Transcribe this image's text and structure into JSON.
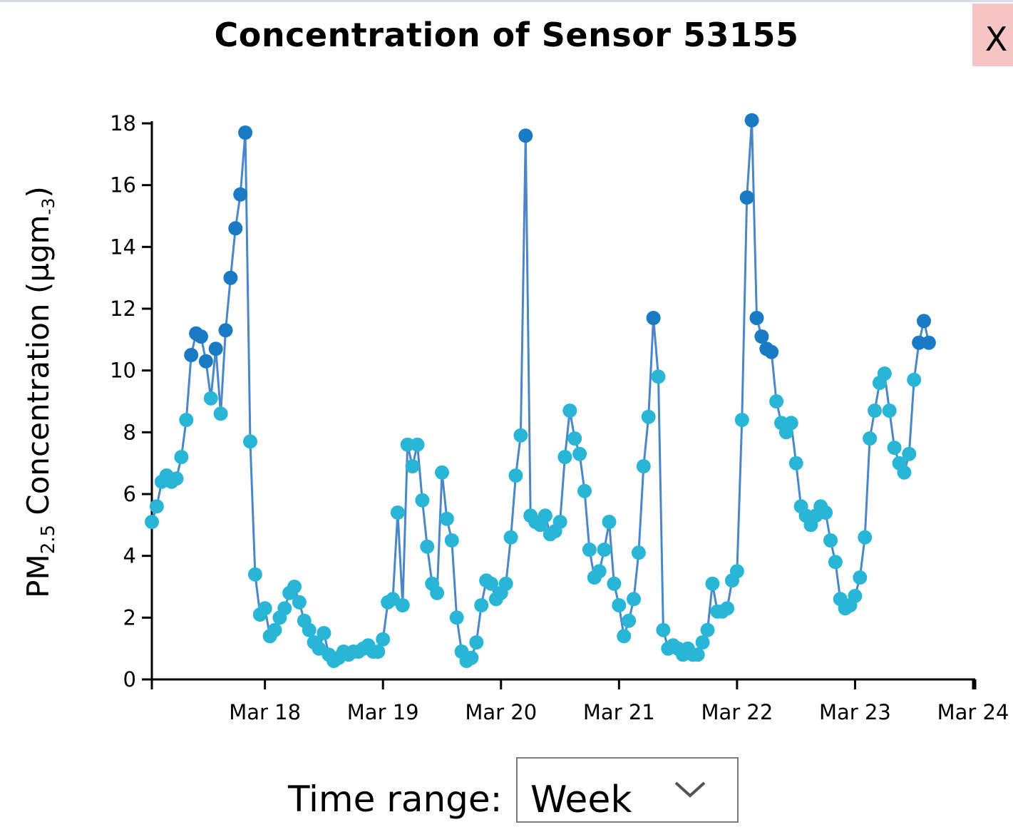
{
  "window": {
    "title": "Concentration of Sensor 53155",
    "close_label": "X"
  },
  "controls": {
    "time_range_label": "Time range:",
    "time_range_value": "Week"
  },
  "colors": {
    "line": "#4a86c8",
    "point_low": "#29b6d6",
    "point_high": "#1a7ac4",
    "axis": "#000000",
    "close_bg": "#f5c4c4"
  },
  "icons": {
    "close": "close-icon",
    "dropdown": "chevron-down-icon"
  },
  "chart_data": {
    "type": "line",
    "title": "Concentration of Sensor 53155",
    "xlabel": "",
    "ylabel": "PM2.5 Concentration (µgm-3)",
    "ylabel_parts": {
      "prefix": "PM",
      "sub": "2.5",
      "middle": " Concentration (µgm",
      "sup": "-3",
      "suffix": ")"
    },
    "ylim": [
      0,
      18
    ],
    "yticks": [
      0,
      2,
      4,
      6,
      8,
      10,
      12,
      14,
      16,
      18
    ],
    "xlim": [
      "2019-03-17T01:00",
      "2019-03-24T00:00"
    ],
    "xticks": [
      {
        "date": "2019-03-18T00:00",
        "label": "Mar 18"
      },
      {
        "date": "2019-03-19T00:00",
        "label": "Mar 19"
      },
      {
        "date": "2019-03-20T00:00",
        "label": "Mar 20"
      },
      {
        "date": "2019-03-21T00:00",
        "label": "Mar 21"
      },
      {
        "date": "2019-03-22T00:00",
        "label": "Mar 22"
      },
      {
        "date": "2019-03-23T00:00",
        "label": "Mar 23"
      },
      {
        "date": "2019-03-24T00:00",
        "label": "Mar 24"
      }
    ],
    "grid": false,
    "legend": "none",
    "series": [
      {
        "values": [
          [
            "2019-03-17T01:00",
            5.1
          ],
          [
            "2019-03-17T02:00",
            5.6
          ],
          [
            "2019-03-17T03:00",
            6.4
          ],
          [
            "2019-03-17T04:00",
            6.6
          ],
          [
            "2019-03-17T05:00",
            6.4
          ],
          [
            "2019-03-17T06:00",
            6.5
          ],
          [
            "2019-03-17T07:00",
            7.2
          ],
          [
            "2019-03-17T08:00",
            8.4
          ],
          [
            "2019-03-17T09:00",
            10.5
          ],
          [
            "2019-03-17T10:00",
            11.2
          ],
          [
            "2019-03-17T11:00",
            11.1
          ],
          [
            "2019-03-17T12:00",
            10.3
          ],
          [
            "2019-03-17T13:00",
            9.1
          ],
          [
            "2019-03-17T14:00",
            10.7
          ],
          [
            "2019-03-17T15:00",
            8.6
          ],
          [
            "2019-03-17T16:00",
            11.3
          ],
          [
            "2019-03-17T17:00",
            13.0
          ],
          [
            "2019-03-17T18:00",
            14.6
          ],
          [
            "2019-03-17T19:00",
            15.7
          ],
          [
            "2019-03-17T20:00",
            17.7
          ],
          [
            "2019-03-17T21:00",
            7.7
          ],
          [
            "2019-03-17T22:00",
            3.4
          ],
          [
            "2019-03-17T23:00",
            2.1
          ],
          [
            "2019-03-18T00:00",
            2.3
          ],
          [
            "2019-03-18T01:00",
            1.4
          ],
          [
            "2019-03-18T02:00",
            1.6
          ],
          [
            "2019-03-18T03:00",
            2.0
          ],
          [
            "2019-03-18T04:00",
            2.3
          ],
          [
            "2019-03-18T05:00",
            2.8
          ],
          [
            "2019-03-18T06:00",
            3.0
          ],
          [
            "2019-03-18T07:00",
            2.5
          ],
          [
            "2019-03-18T08:00",
            1.9
          ],
          [
            "2019-03-18T09:00",
            1.6
          ],
          [
            "2019-03-18T10:00",
            1.2
          ],
          [
            "2019-03-18T11:00",
            1.0
          ],
          [
            "2019-03-18T12:00",
            1.5
          ],
          [
            "2019-03-18T13:00",
            0.8
          ],
          [
            "2019-03-18T14:00",
            0.6
          ],
          [
            "2019-03-18T15:00",
            0.7
          ],
          [
            "2019-03-18T16:00",
            0.9
          ],
          [
            "2019-03-18T17:00",
            0.8
          ],
          [
            "2019-03-18T18:00",
            0.9
          ],
          [
            "2019-03-18T19:00",
            0.9
          ],
          [
            "2019-03-18T20:00",
            1.0
          ],
          [
            "2019-03-18T21:00",
            1.1
          ],
          [
            "2019-03-18T22:00",
            0.9
          ],
          [
            "2019-03-18T23:00",
            0.9
          ],
          [
            "2019-03-19T00:00",
            1.3
          ],
          [
            "2019-03-19T01:00",
            2.5
          ],
          [
            "2019-03-19T02:00",
            2.6
          ],
          [
            "2019-03-19T03:00",
            5.4
          ],
          [
            "2019-03-19T04:00",
            2.4
          ],
          [
            "2019-03-19T05:00",
            7.6
          ],
          [
            "2019-03-19T06:00",
            6.9
          ],
          [
            "2019-03-19T07:00",
            7.6
          ],
          [
            "2019-03-19T08:00",
            5.8
          ],
          [
            "2019-03-19T09:00",
            4.3
          ],
          [
            "2019-03-19T10:00",
            3.1
          ],
          [
            "2019-03-19T11:00",
            2.8
          ],
          [
            "2019-03-19T12:00",
            6.7
          ],
          [
            "2019-03-19T13:00",
            5.2
          ],
          [
            "2019-03-19T14:00",
            4.5
          ],
          [
            "2019-03-19T15:00",
            2.0
          ],
          [
            "2019-03-19T16:00",
            0.9
          ],
          [
            "2019-03-19T17:00",
            0.6
          ],
          [
            "2019-03-19T18:00",
            0.7
          ],
          [
            "2019-03-19T19:00",
            1.2
          ],
          [
            "2019-03-19T20:00",
            2.4
          ],
          [
            "2019-03-19T21:00",
            3.2
          ],
          [
            "2019-03-19T22:00",
            3.1
          ],
          [
            "2019-03-19T23:00",
            2.6
          ],
          [
            "2019-03-20T00:00",
            2.8
          ],
          [
            "2019-03-20T01:00",
            3.1
          ],
          [
            "2019-03-20T02:00",
            4.6
          ],
          [
            "2019-03-20T03:00",
            6.6
          ],
          [
            "2019-03-20T04:00",
            7.9
          ],
          [
            "2019-03-20T05:00",
            17.6
          ],
          [
            "2019-03-20T06:00",
            5.3
          ],
          [
            "2019-03-20T07:00",
            5.1
          ],
          [
            "2019-03-20T08:00",
            5.0
          ],
          [
            "2019-03-20T09:00",
            5.3
          ],
          [
            "2019-03-20T10:00",
            4.7
          ],
          [
            "2019-03-20T11:00",
            4.8
          ],
          [
            "2019-03-20T12:00",
            5.1
          ],
          [
            "2019-03-20T13:00",
            7.2
          ],
          [
            "2019-03-20T14:00",
            8.7
          ],
          [
            "2019-03-20T15:00",
            7.8
          ],
          [
            "2019-03-20T16:00",
            7.3
          ],
          [
            "2019-03-20T17:00",
            6.1
          ],
          [
            "2019-03-20T18:00",
            4.2
          ],
          [
            "2019-03-20T19:00",
            3.3
          ],
          [
            "2019-03-20T20:00",
            3.5
          ],
          [
            "2019-03-20T21:00",
            4.2
          ],
          [
            "2019-03-20T22:00",
            5.1
          ],
          [
            "2019-03-20T23:00",
            3.1
          ],
          [
            "2019-03-21T00:00",
            2.4
          ],
          [
            "2019-03-21T01:00",
            1.4
          ],
          [
            "2019-03-21T02:00",
            1.9
          ],
          [
            "2019-03-21T03:00",
            2.6
          ],
          [
            "2019-03-21T04:00",
            4.1
          ],
          [
            "2019-03-21T05:00",
            6.9
          ],
          [
            "2019-03-21T06:00",
            8.5
          ],
          [
            "2019-03-21T07:00",
            11.7
          ],
          [
            "2019-03-21T08:00",
            9.8
          ],
          [
            "2019-03-21T09:00",
            1.6
          ],
          [
            "2019-03-21T10:00",
            1.0
          ],
          [
            "2019-03-21T11:00",
            1.1
          ],
          [
            "2019-03-21T12:00",
            1.0
          ],
          [
            "2019-03-21T13:00",
            0.8
          ],
          [
            "2019-03-21T14:00",
            1.0
          ],
          [
            "2019-03-21T15:00",
            0.8
          ],
          [
            "2019-03-21T16:00",
            0.8
          ],
          [
            "2019-03-21T17:00",
            1.2
          ],
          [
            "2019-03-21T18:00",
            1.6
          ],
          [
            "2019-03-21T19:00",
            3.1
          ],
          [
            "2019-03-21T20:00",
            2.2
          ],
          [
            "2019-03-21T21:00",
            2.2
          ],
          [
            "2019-03-21T22:00",
            2.3
          ],
          [
            "2019-03-21T23:00",
            3.2
          ],
          [
            "2019-03-22T00:00",
            3.5
          ],
          [
            "2019-03-22T01:00",
            8.4
          ],
          [
            "2019-03-22T02:00",
            15.6
          ],
          [
            "2019-03-22T03:00",
            18.1
          ],
          [
            "2019-03-22T04:00",
            11.7
          ],
          [
            "2019-03-22T05:00",
            11.1
          ],
          [
            "2019-03-22T06:00",
            10.7
          ],
          [
            "2019-03-22T07:00",
            10.6
          ],
          [
            "2019-03-22T08:00",
            9.0
          ],
          [
            "2019-03-22T09:00",
            8.3
          ],
          [
            "2019-03-22T10:00",
            8.0
          ],
          [
            "2019-03-22T11:00",
            8.3
          ],
          [
            "2019-03-22T12:00",
            7.0
          ],
          [
            "2019-03-22T13:00",
            5.6
          ],
          [
            "2019-03-22T14:00",
            5.3
          ],
          [
            "2019-03-22T15:00",
            5.0
          ],
          [
            "2019-03-22T16:00",
            5.3
          ],
          [
            "2019-03-22T17:00",
            5.6
          ],
          [
            "2019-03-22T18:00",
            5.4
          ],
          [
            "2019-03-22T19:00",
            4.5
          ],
          [
            "2019-03-22T20:00",
            3.8
          ],
          [
            "2019-03-22T21:00",
            2.6
          ],
          [
            "2019-03-22T22:00",
            2.3
          ],
          [
            "2019-03-22T23:00",
            2.4
          ],
          [
            "2019-03-23T00:00",
            2.7
          ],
          [
            "2019-03-23T01:00",
            3.3
          ],
          [
            "2019-03-23T02:00",
            4.6
          ],
          [
            "2019-03-23T03:00",
            7.8
          ],
          [
            "2019-03-23T04:00",
            8.7
          ],
          [
            "2019-03-23T05:00",
            9.6
          ],
          [
            "2019-03-23T06:00",
            9.9
          ],
          [
            "2019-03-23T07:00",
            8.7
          ],
          [
            "2019-03-23T08:00",
            7.5
          ],
          [
            "2019-03-23T09:00",
            7.0
          ],
          [
            "2019-03-23T10:00",
            6.7
          ],
          [
            "2019-03-23T11:00",
            7.3
          ],
          [
            "2019-03-23T12:00",
            9.7
          ],
          [
            "2019-03-23T13:00",
            10.9
          ],
          [
            "2019-03-23T14:00",
            11.6
          ],
          [
            "2019-03-23T15:00",
            10.9
          ]
        ]
      }
    ]
  }
}
